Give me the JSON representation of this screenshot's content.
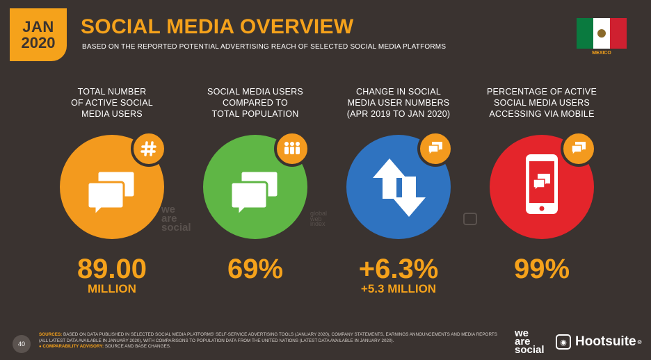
{
  "header": {
    "month": "JAN",
    "year": "2020",
    "title": "SOCIAL MEDIA OVERVIEW",
    "subtitle": "BASED ON THE REPORTED POTENTIAL ADVERTISING REACH OF SELECTED SOCIAL MEDIA PLATFORMS",
    "country": "MEXICO"
  },
  "colors": {
    "background": "#3a3330",
    "accent": "#f5a21b",
    "orange": "#f39a1e",
    "green": "#5fb645",
    "blue": "#2f73c0",
    "red": "#e4252b"
  },
  "stats": [
    {
      "heading_lines": [
        "TOTAL NUMBER",
        "OF ACTIVE SOCIAL",
        "MEDIA USERS"
      ],
      "value": "89.00",
      "sub": "MILLION",
      "icon": "hashtag-icon"
    },
    {
      "heading_lines": [
        "SOCIAL MEDIA USERS",
        "COMPARED TO",
        "TOTAL POPULATION"
      ],
      "value": "69%",
      "sub": "",
      "icon": "people-icon"
    },
    {
      "heading_lines": [
        "CHANGE IN SOCIAL",
        "MEDIA USER NUMBERS",
        "(APR 2019 TO JAN 2020)"
      ],
      "value": "+6.3%",
      "sub": "+5.3 MILLION",
      "icon": "chat-icon"
    },
    {
      "heading_lines": [
        "PERCENTAGE OF ACTIVE",
        "SOCIAL MEDIA USERS",
        "ACCESSING VIA MOBILE"
      ],
      "value": "99%",
      "sub": "",
      "icon": "chat-icon"
    }
  ],
  "watermarks": {
    "we": "we",
    "are": "are",
    "social": "social",
    "gwi_global": "global",
    "gwi_web": "web",
    "gwi_index": "index"
  },
  "footer": {
    "page_number": "40",
    "sources_label": "SOURCES:",
    "sources_text": "BASED ON DATA PUBLISHED IN SELECTED SOCIAL MEDIA PLATFORMS' SELF-SERVICE ADVERTISING TOOLS (JANUARY 2020), COMPANY STATEMENTS, EARNINGS ANNOUNCEMENTS AND MEDIA REPORTS (ALL LATEST DATA AVAILABLE IN JANUARY 2020), WITH COMPARISONS TO POPULATION DATA FROM THE UNITED NATIONS (LATEST DATA AVAILABLE IN JANUARY 2020).",
    "advisory_label": "COMPARABILITY ADVISORY:",
    "advisory_text": "SOURCE AND BASE CHANGES.",
    "brand_we": "we",
    "brand_are": "are",
    "brand_social": "social",
    "brand_hootsuite": "Hootsuite",
    "brand_reg": "®"
  }
}
